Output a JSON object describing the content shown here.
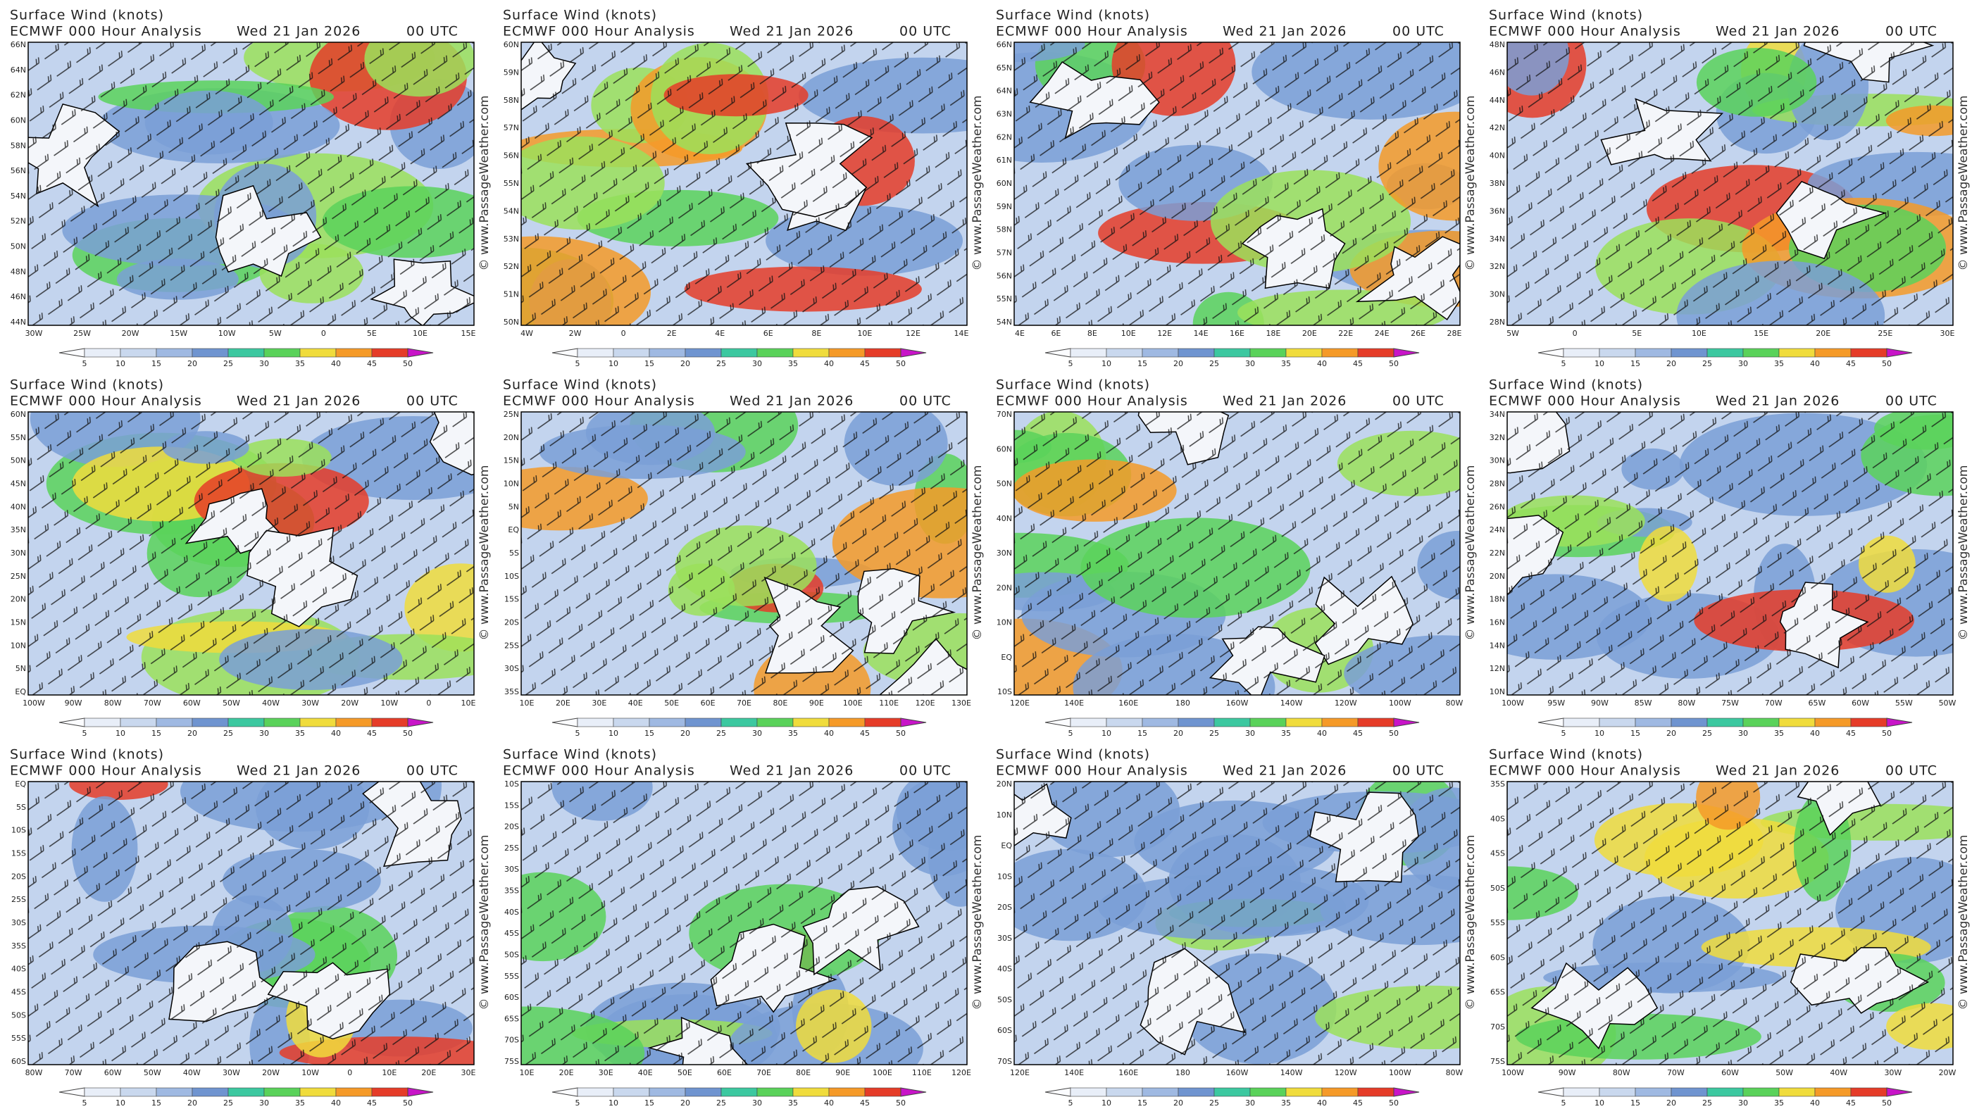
{
  "header": {
    "title": "Surface Wind (knots)",
    "model": "ECMWF 000 Hour Analysis",
    "date": "Wed 21 Jan 2026",
    "time": "00 UTC",
    "credit": "© www.PassageWeather.com"
  },
  "colorbar": {
    "ticks": [
      5,
      10,
      15,
      20,
      25,
      30,
      35,
      40,
      45,
      50
    ]
  },
  "panels": [
    {
      "lat": [
        "66N",
        "64N",
        "62N",
        "60N",
        "58N",
        "56N",
        "54N",
        "52N",
        "50N",
        "48N",
        "46N",
        "44N"
      ],
      "lon": [
        "30W",
        "25W",
        "20W",
        "15W",
        "10W",
        "5W",
        "0",
        "5E",
        "10E",
        "15E"
      ]
    },
    {
      "lat": [
        "60N",
        "59N",
        "58N",
        "57N",
        "56N",
        "55N",
        "54N",
        "53N",
        "52N",
        "51N",
        "50N"
      ],
      "lon": [
        "4W",
        "2W",
        "0",
        "2E",
        "4E",
        "6E",
        "8E",
        "10E",
        "12E",
        "14E"
      ]
    },
    {
      "lat": [
        "66N",
        "65N",
        "64N",
        "63N",
        "62N",
        "61N",
        "60N",
        "59N",
        "58N",
        "57N",
        "56N",
        "55N",
        "54N"
      ],
      "lon": [
        "4E",
        "6E",
        "8E",
        "10E",
        "12E",
        "14E",
        "16E",
        "18E",
        "20E",
        "22E",
        "24E",
        "26E",
        "28E"
      ]
    },
    {
      "lat": [
        "48N",
        "46N",
        "44N",
        "42N",
        "40N",
        "38N",
        "36N",
        "34N",
        "32N",
        "30N",
        "28N"
      ],
      "lon": [
        "5W",
        "0",
        "5E",
        "10E",
        "15E",
        "20E",
        "25E",
        "30E"
      ]
    },
    {
      "lat": [
        "60N",
        "55N",
        "50N",
        "45N",
        "40N",
        "35N",
        "30N",
        "25N",
        "20N",
        "15N",
        "10N",
        "5N",
        "EQ"
      ],
      "lon": [
        "100W",
        "90W",
        "80W",
        "70W",
        "60W",
        "50W",
        "40W",
        "30W",
        "20W",
        "10W",
        "0",
        "10E"
      ]
    },
    {
      "lat": [
        "25N",
        "20N",
        "15N",
        "10N",
        "5N",
        "EQ",
        "5S",
        "10S",
        "15S",
        "20S",
        "25S",
        "30S",
        "35S"
      ],
      "lon": [
        "10E",
        "20E",
        "30E",
        "40E",
        "50E",
        "60E",
        "70E",
        "80E",
        "90E",
        "100E",
        "110E",
        "120E",
        "130E"
      ]
    },
    {
      "lat": [
        "70N",
        "60N",
        "50N",
        "40N",
        "30N",
        "20N",
        "10N",
        "EQ",
        "10S"
      ],
      "lon": [
        "120E",
        "140E",
        "160E",
        "180",
        "160W",
        "140W",
        "120W",
        "100W",
        "80W"
      ]
    },
    {
      "lat": [
        "34N",
        "32N",
        "30N",
        "28N",
        "26N",
        "24N",
        "22N",
        "20N",
        "18N",
        "16N",
        "14N",
        "12N",
        "10N"
      ],
      "lon": [
        "100W",
        "95W",
        "90W",
        "85W",
        "80W",
        "75W",
        "70W",
        "65W",
        "60W",
        "55W",
        "50W"
      ]
    },
    {
      "lat": [
        "EQ",
        "5S",
        "10S",
        "15S",
        "20S",
        "25S",
        "30S",
        "35S",
        "40S",
        "45S",
        "50S",
        "55S",
        "60S"
      ],
      "lon": [
        "80W",
        "70W",
        "60W",
        "50W",
        "40W",
        "30W",
        "20W",
        "10W",
        "0",
        "10E",
        "20E",
        "30E"
      ]
    },
    {
      "lat": [
        "10S",
        "15S",
        "20S",
        "25S",
        "30S",
        "35S",
        "40S",
        "45S",
        "50S",
        "55S",
        "60S",
        "65S",
        "70S",
        "75S"
      ],
      "lon": [
        "10E",
        "20E",
        "30E",
        "40E",
        "50E",
        "60E",
        "70E",
        "80E",
        "90E",
        "100E",
        "110E",
        "120E"
      ]
    },
    {
      "lat": [
        "20N",
        "10N",
        "EQ",
        "10S",
        "20S",
        "30S",
        "40S",
        "50S",
        "60S",
        "70S"
      ],
      "lon": [
        "120E",
        "140E",
        "160E",
        "180",
        "160W",
        "140W",
        "120W",
        "100W",
        "80W"
      ]
    },
    {
      "lat": [
        "35S",
        "40S",
        "45S",
        "50S",
        "55S",
        "60S",
        "65S",
        "70S",
        "75S"
      ],
      "lon": [
        "100W",
        "90W",
        "80W",
        "70W",
        "60W",
        "50W",
        "40W",
        "30W",
        "20W"
      ]
    }
  ]
}
